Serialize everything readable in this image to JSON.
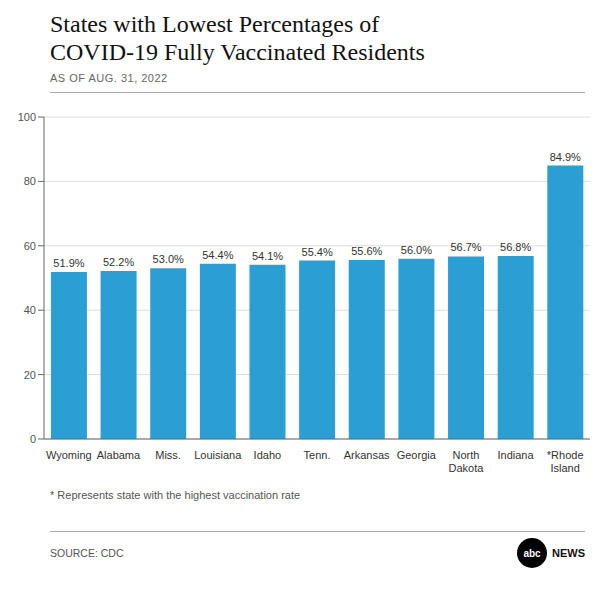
{
  "chart_data": {
    "type": "bar",
    "title": "States with Lowest Percentages of\nCOVID-19 Fully Vaccinated Residents",
    "subtitle": "AS OF AUG. 31, 2022",
    "categories": [
      "Wyoming",
      "Alabama",
      "Miss.",
      "Louisiana",
      "Idaho",
      "Tenn.",
      "Arkansas",
      "Georgia",
      "North\nDakota",
      "Indiana",
      "*Rhode\nIsland"
    ],
    "values": [
      51.9,
      52.2,
      53.0,
      54.4,
      54.1,
      55.4,
      55.6,
      56.0,
      56.7,
      56.8,
      84.9
    ],
    "value_labels": [
      "51.9%",
      "52.2%",
      "53.0%",
      "54.4%",
      "54.1%",
      "55.4%",
      "55.6%",
      "56.0%",
      "56.7%",
      "56.8%",
      "84.9%"
    ],
    "data_labels": true,
    "color": "#2b9fd4",
    "ylim": [
      0,
      100
    ],
    "yticks": [
      0,
      20,
      40,
      60,
      80,
      100
    ],
    "grid": true,
    "annotations": [
      "* Represents state with the highest vaccination rate",
      "SOURCE: CDC",
      "abc",
      "NEWS"
    ]
  }
}
